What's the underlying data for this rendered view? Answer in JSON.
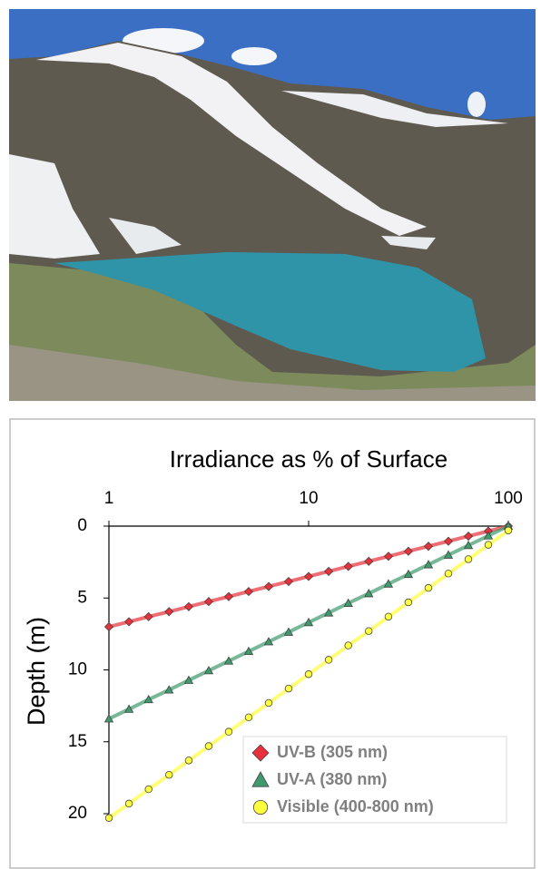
{
  "chart_data": {
    "type": "scatter",
    "title": "Irradiance as % of Surface",
    "y_label": "Depth (m)",
    "xscale": "log",
    "xlim": [
      1,
      100
    ],
    "xticks": [
      1,
      10,
      100
    ],
    "x_axis_position": "top",
    "ylim": [
      0,
      20
    ],
    "y_inverted": true,
    "yticks": [
      0,
      5,
      10,
      15,
      20
    ],
    "grid": false,
    "legend": "lower right",
    "series": [
      {
        "name": "UV-B (305 nm)",
        "color": "#e8313a",
        "marker": "diamond",
        "x": [
          100,
          79.4,
          63.1,
          50.1,
          39.8,
          31.6,
          25.1,
          20,
          15.8,
          12.6,
          10,
          7.94,
          6.31,
          5.01,
          3.98,
          3.16,
          2.51,
          2,
          1.58,
          1.26,
          1
        ],
        "values": [
          0,
          0.35,
          0.7,
          1.05,
          1.4,
          1.75,
          2.1,
          2.45,
          2.8,
          3.15,
          3.5,
          3.85,
          4.2,
          4.55,
          4.9,
          5.25,
          5.6,
          5.95,
          6.3,
          6.65,
          7
        ]
      },
      {
        "name": "UV-A (380 nm)",
        "color": "#3f9a6e",
        "marker": "triangle",
        "x": [
          100,
          79.4,
          63.1,
          50.1,
          39.8,
          31.6,
          25.1,
          20,
          15.8,
          12.6,
          10,
          7.94,
          6.31,
          5.01,
          3.98,
          3.16,
          2.51,
          2,
          1.58,
          1.26,
          1
        ],
        "values": [
          0,
          0.67,
          1.34,
          2.01,
          2.68,
          3.35,
          4.02,
          4.69,
          5.36,
          6.03,
          6.7,
          7.37,
          8.04,
          8.71,
          9.38,
          10.05,
          10.72,
          11.39,
          12.06,
          12.73,
          13.4
        ]
      },
      {
        "name": "Visible (400-800 nm)",
        "color": "#ffff3c",
        "marker": "circle",
        "x": [
          100,
          79.4,
          63.1,
          50.1,
          39.8,
          31.6,
          25.1,
          20,
          15.8,
          12.6,
          10,
          7.94,
          6.31,
          5.01,
          3.98,
          3.16,
          2.51,
          2,
          1.58,
          1.26,
          1
        ],
        "values": [
          0.3,
          1.3,
          2.3,
          3.3,
          4.3,
          5.3,
          6.3,
          7.3,
          8.3,
          9.3,
          10.3,
          11.3,
          12.3,
          13.3,
          14.3,
          15.3,
          16.3,
          17.3,
          18.3,
          19.3,
          20.3
        ]
      }
    ]
  }
}
